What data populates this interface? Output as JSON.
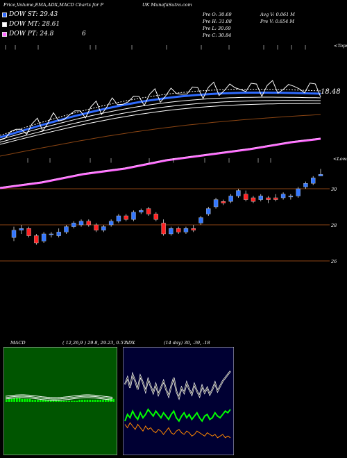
{
  "header": {
    "title_left": "Price,Volume,EMA,ADX,MACD Charts for P",
    "title_right": "UK MunafaSutra.com"
  },
  "legend": [
    {
      "label": "DOW ST: 29.43",
      "color": "#2f6bff"
    },
    {
      "label": "DOW MT: 28.61",
      "color": "#ffffff"
    },
    {
      "label": "DOW PT: 24.8",
      "color": "#ff66ff"
    }
  ],
  "legend_extra": "6",
  "stats": {
    "open": "Pre  O: 30.69",
    "high": "Pre  H: 31.08",
    "low": "Pre  L: 30.69",
    "close": "Pre  C: 30.84",
    "avg_vol": "Avg V: 0.061  M",
    "pre_vol": "Pre  V: 0.654  M"
  },
  "top_label": "<Tops",
  "lows_label": "<Lows",
  "ema_value_label": "18.48",
  "price_axis": [
    "30",
    "28",
    "26"
  ],
  "macd": {
    "label": "MACD",
    "params": "( 12,26,9 ) 29.8,  29.23,  0.57"
  },
  "adx": {
    "label": "ADX",
    "params": "(14  day) 30,  -39,  -18"
  },
  "colors": {
    "ema_short": "#2f6bff",
    "ema_mid": "#ffffff",
    "ema_long": "#ff66ff",
    "ema_brown": "#8b4513",
    "up": "#3377ff",
    "down": "#ff2222",
    "macd_hist": "#00ff00",
    "panel_bg_macd": "#005500",
    "panel_bg_adx": "#000033",
    "adx_plus": "#00ff00",
    "adx_minus": "#ff8800"
  },
  "chart_data": {
    "type": "candlestick",
    "title": "Price,Volume,EMA,ADX,MACD Charts for P",
    "y_axis_ticks": [
      30,
      28,
      26
    ],
    "candles": [
      {
        "o": 27.3,
        "h": 27.9,
        "l": 27.1,
        "c": 27.7
      },
      {
        "o": 27.7,
        "h": 28.0,
        "l": 27.5,
        "c": 27.8
      },
      {
        "o": 27.8,
        "h": 27.9,
        "l": 27.3,
        "c": 27.4
      },
      {
        "o": 27.4,
        "h": 27.5,
        "l": 26.9,
        "c": 27.0
      },
      {
        "o": 27.1,
        "h": 27.6,
        "l": 27.0,
        "c": 27.5
      },
      {
        "o": 27.5,
        "h": 27.6,
        "l": 27.3,
        "c": 27.5
      },
      {
        "o": 27.4,
        "h": 27.8,
        "l": 27.3,
        "c": 27.6
      },
      {
        "o": 27.6,
        "h": 28.0,
        "l": 27.5,
        "c": 27.9
      },
      {
        "o": 27.9,
        "h": 28.2,
        "l": 27.8,
        "c": 28.1
      },
      {
        "o": 28.0,
        "h": 28.3,
        "l": 27.9,
        "c": 28.2
      },
      {
        "o": 28.2,
        "h": 28.3,
        "l": 27.9,
        "c": 28.0
      },
      {
        "o": 28.0,
        "h": 28.1,
        "l": 27.6,
        "c": 27.7
      },
      {
        "o": 27.7,
        "h": 28.0,
        "l": 27.6,
        "c": 27.9
      },
      {
        "o": 28.0,
        "h": 28.3,
        "l": 27.9,
        "c": 28.2
      },
      {
        "o": 28.2,
        "h": 28.6,
        "l": 28.1,
        "c": 28.5
      },
      {
        "o": 28.5,
        "h": 28.6,
        "l": 28.2,
        "c": 28.3
      },
      {
        "o": 28.3,
        "h": 28.8,
        "l": 28.2,
        "c": 28.7
      },
      {
        "o": 28.7,
        "h": 28.9,
        "l": 28.6,
        "c": 28.8
      },
      {
        "o": 28.9,
        "h": 29.0,
        "l": 28.5,
        "c": 28.6
      },
      {
        "o": 28.6,
        "h": 28.7,
        "l": 28.2,
        "c": 28.3
      },
      {
        "o": 28.1,
        "h": 28.3,
        "l": 27.4,
        "c": 27.5
      },
      {
        "o": 27.5,
        "h": 27.9,
        "l": 27.4,
        "c": 27.8
      },
      {
        "o": 27.8,
        "h": 27.9,
        "l": 27.5,
        "c": 27.6
      },
      {
        "o": 27.6,
        "h": 27.9,
        "l": 27.5,
        "c": 27.8
      },
      {
        "o": 27.8,
        "h": 28.0,
        "l": 27.6,
        "c": 27.7
      },
      {
        "o": 28.1,
        "h": 28.5,
        "l": 28.0,
        "c": 28.4
      },
      {
        "o": 28.6,
        "h": 29.0,
        "l": 28.5,
        "c": 28.9
      },
      {
        "o": 29.0,
        "h": 29.5,
        "l": 28.9,
        "c": 29.4
      },
      {
        "o": 29.3,
        "h": 29.4,
        "l": 29.1,
        "c": 29.2
      },
      {
        "o": 29.3,
        "h": 29.7,
        "l": 29.2,
        "c": 29.6
      },
      {
        "o": 29.6,
        "h": 30.0,
        "l": 29.5,
        "c": 29.9
      },
      {
        "o": 29.7,
        "h": 29.9,
        "l": 29.3,
        "c": 29.4
      },
      {
        "o": 29.5,
        "h": 29.6,
        "l": 29.2,
        "c": 29.3
      },
      {
        "o": 29.4,
        "h": 29.7,
        "l": 29.3,
        "c": 29.6
      },
      {
        "o": 29.5,
        "h": 29.6,
        "l": 29.2,
        "c": 29.4
      },
      {
        "o": 29.5,
        "h": 29.7,
        "l": 29.3,
        "c": 29.4
      },
      {
        "o": 29.5,
        "h": 29.8,
        "l": 29.4,
        "c": 29.7
      },
      {
        "o": 29.6,
        "h": 29.7,
        "l": 29.4,
        "c": 29.6
      },
      {
        "o": 29.6,
        "h": 30.1,
        "l": 29.5,
        "c": 30.0
      },
      {
        "o": 30.1,
        "h": 30.4,
        "l": 30.0,
        "c": 30.3
      },
      {
        "o": 30.3,
        "h": 30.7,
        "l": 30.2,
        "c": 30.6
      },
      {
        "o": 30.7,
        "h": 31.1,
        "l": 30.7,
        "c": 30.8
      }
    ],
    "macd_hist": [
      2,
      3,
      3,
      4,
      4,
      4,
      3,
      3,
      3,
      3,
      2,
      2,
      2,
      2,
      2,
      2,
      2,
      2,
      2,
      2,
      2,
      1,
      1,
      1,
      1,
      1,
      1,
      1,
      2,
      2,
      2,
      2,
      2,
      2,
      2,
      2,
      2,
      2,
      2,
      3,
      3,
      3
    ],
    "adx_line": [
      40,
      44,
      38,
      46,
      42,
      37,
      45,
      41,
      36,
      43,
      39,
      35,
      40,
      34,
      38,
      42,
      37,
      33,
      39,
      44,
      36,
      32,
      38,
      35,
      41,
      37,
      34,
      40,
      36,
      33,
      39,
      35,
      38,
      34,
      37,
      41,
      36,
      39,
      42,
      44,
      46,
      48
    ],
    "adx_plus": [
      18,
      22,
      20,
      24,
      21,
      19,
      23,
      20,
      22,
      25,
      23,
      21,
      24,
      22,
      20,
      23,
      21,
      19,
      22,
      24,
      20,
      18,
      21,
      23,
      20,
      22,
      19,
      21,
      23,
      20,
      18,
      21,
      22,
      19,
      20,
      23,
      21,
      20,
      22,
      24,
      23,
      25
    ],
    "adx_minus": [
      16,
      14,
      17,
      15,
      13,
      16,
      14,
      12,
      15,
      13,
      14,
      12,
      11,
      13,
      12,
      10,
      12,
      14,
      11,
      10,
      12,
      13,
      11,
      10,
      12,
      11,
      9,
      10,
      12,
      11,
      10,
      9,
      11,
      10,
      9,
      10,
      8,
      9,
      10,
      8,
      9,
      8
    ]
  }
}
